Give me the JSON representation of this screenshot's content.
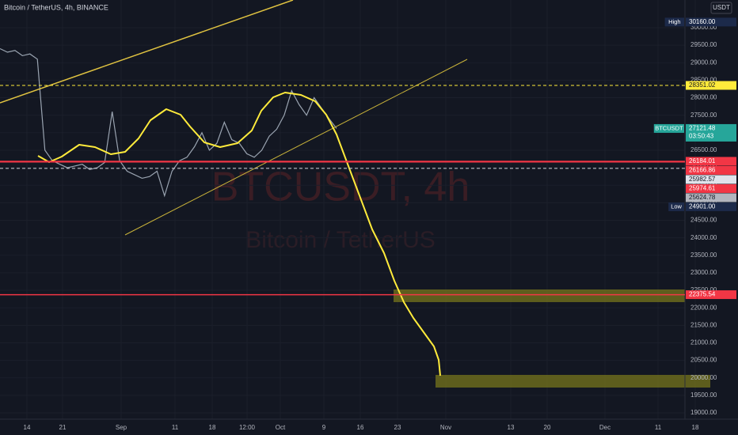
{
  "header": {
    "symbol": "Bitcoin / TetherUS, 4h, BINANCE",
    "currency": "USDT"
  },
  "watermark": {
    "ticker": "BTCUSDT, 4h",
    "name": "Bitcoin / TetherUS"
  },
  "chart_data": {
    "type": "line",
    "color": "#9aa4b1",
    "values": [
      29400,
      29300,
      29350,
      29200,
      29250,
      29100,
      26500,
      26200,
      26100,
      26000,
      26050,
      26100,
      25950,
      26000,
      26150,
      27600,
      26200,
      25900,
      25800,
      25700,
      25750,
      25900,
      25200,
      25900,
      26200,
      26300,
      26600,
      27000,
      26500,
      26700,
      27300,
      26800,
      26700,
      26400,
      26300,
      26500,
      26900,
      27100,
      27500,
      28200,
      27800,
      27500,
      28000,
      27700,
      27400,
      27121.48
    ],
    "ylim": [
      18820,
      30790
    ],
    "yticks": [
      {
        "value": 19000,
        "label": "19000.00"
      },
      {
        "value": 19500,
        "label": "19500.00"
      },
      {
        "value": 20000,
        "label": "20000.00"
      },
      {
        "value": 20500,
        "label": "20500.00"
      },
      {
        "value": 21000,
        "label": "21000.00"
      },
      {
        "value": 21500,
        "label": "21500.00"
      },
      {
        "value": 22000,
        "label": "22000.00"
      },
      {
        "value": 22500,
        "label": "22500.00"
      },
      {
        "value": 23000,
        "label": "23000.00"
      },
      {
        "value": 23500,
        "label": "23500.00"
      },
      {
        "value": 24000,
        "label": "24000.00"
      },
      {
        "value": 24500,
        "label": "24500.00"
      },
      {
        "value": 25000,
        "label": "25000.00"
      },
      {
        "value": 25500,
        "label": "25500.00"
      },
      {
        "value": 26000,
        "label": "26000.00"
      },
      {
        "value": 26500,
        "label": "26500.00"
      },
      {
        "value": 27000,
        "label": "27000.00"
      },
      {
        "value": 27500,
        "label": "27500.00"
      },
      {
        "value": 28000,
        "label": "28000.00"
      },
      {
        "value": 28500,
        "label": "28500.00"
      },
      {
        "value": 29000,
        "label": "29000.00"
      },
      {
        "value": 29500,
        "label": "29500.00"
      },
      {
        "value": 30000,
        "label": "30000.00"
      }
    ],
    "x_labels": [
      "14",
      "21",
      "Sep",
      "11",
      "18",
      "12:00",
      "Oct",
      "9",
      "16",
      "23",
      "Nov",
      "13",
      "20",
      "Dec",
      "11",
      "18"
    ],
    "grid": true,
    "markers": [
      {
        "tag": "High",
        "value": 30160,
        "label": "30160.00",
        "color": "#1c2a4a",
        "text_color": "#ffffff"
      },
      {
        "value": 28351.02,
        "color": "#ffeb3b",
        "text_color": "#131722",
        "line": "dashed",
        "line_color": "#ffeb3b"
      },
      {
        "tag": "BTCUSDT",
        "value": 27121.48,
        "countdown": "03:50:43",
        "color": "#26a69a",
        "text_color": "#ffffff"
      },
      {
        "value": 26184.01,
        "color": "#f23645",
        "text_color": "#ffffff",
        "line": "solid",
        "line_color": "#f23645"
      },
      {
        "value": 26166.86,
        "color": "#f23645",
        "text_color": "#ffffff",
        "line": "solid",
        "line_color": "#f23645"
      },
      {
        "value": 25982.57,
        "color": "#e0e3eb",
        "text_color": "#131722",
        "line": "dashed",
        "line_color": "#d1d4dc"
      },
      {
        "value": 25974.61,
        "color": "#f23645",
        "text_color": "#ffffff"
      },
      {
        "value": 25624.78,
        "color": "#b2b5be",
        "text_color": "#131722"
      },
      {
        "tag": "Low",
        "value": 24901,
        "label": "24901.00",
        "color": "#1c2a4a",
        "text_color": "#ffffff"
      },
      {
        "value": 22375.54,
        "color": "#f23645",
        "text_color": "#ffffff",
        "line": "solid",
        "line_color": "#f23645"
      }
    ]
  }
}
